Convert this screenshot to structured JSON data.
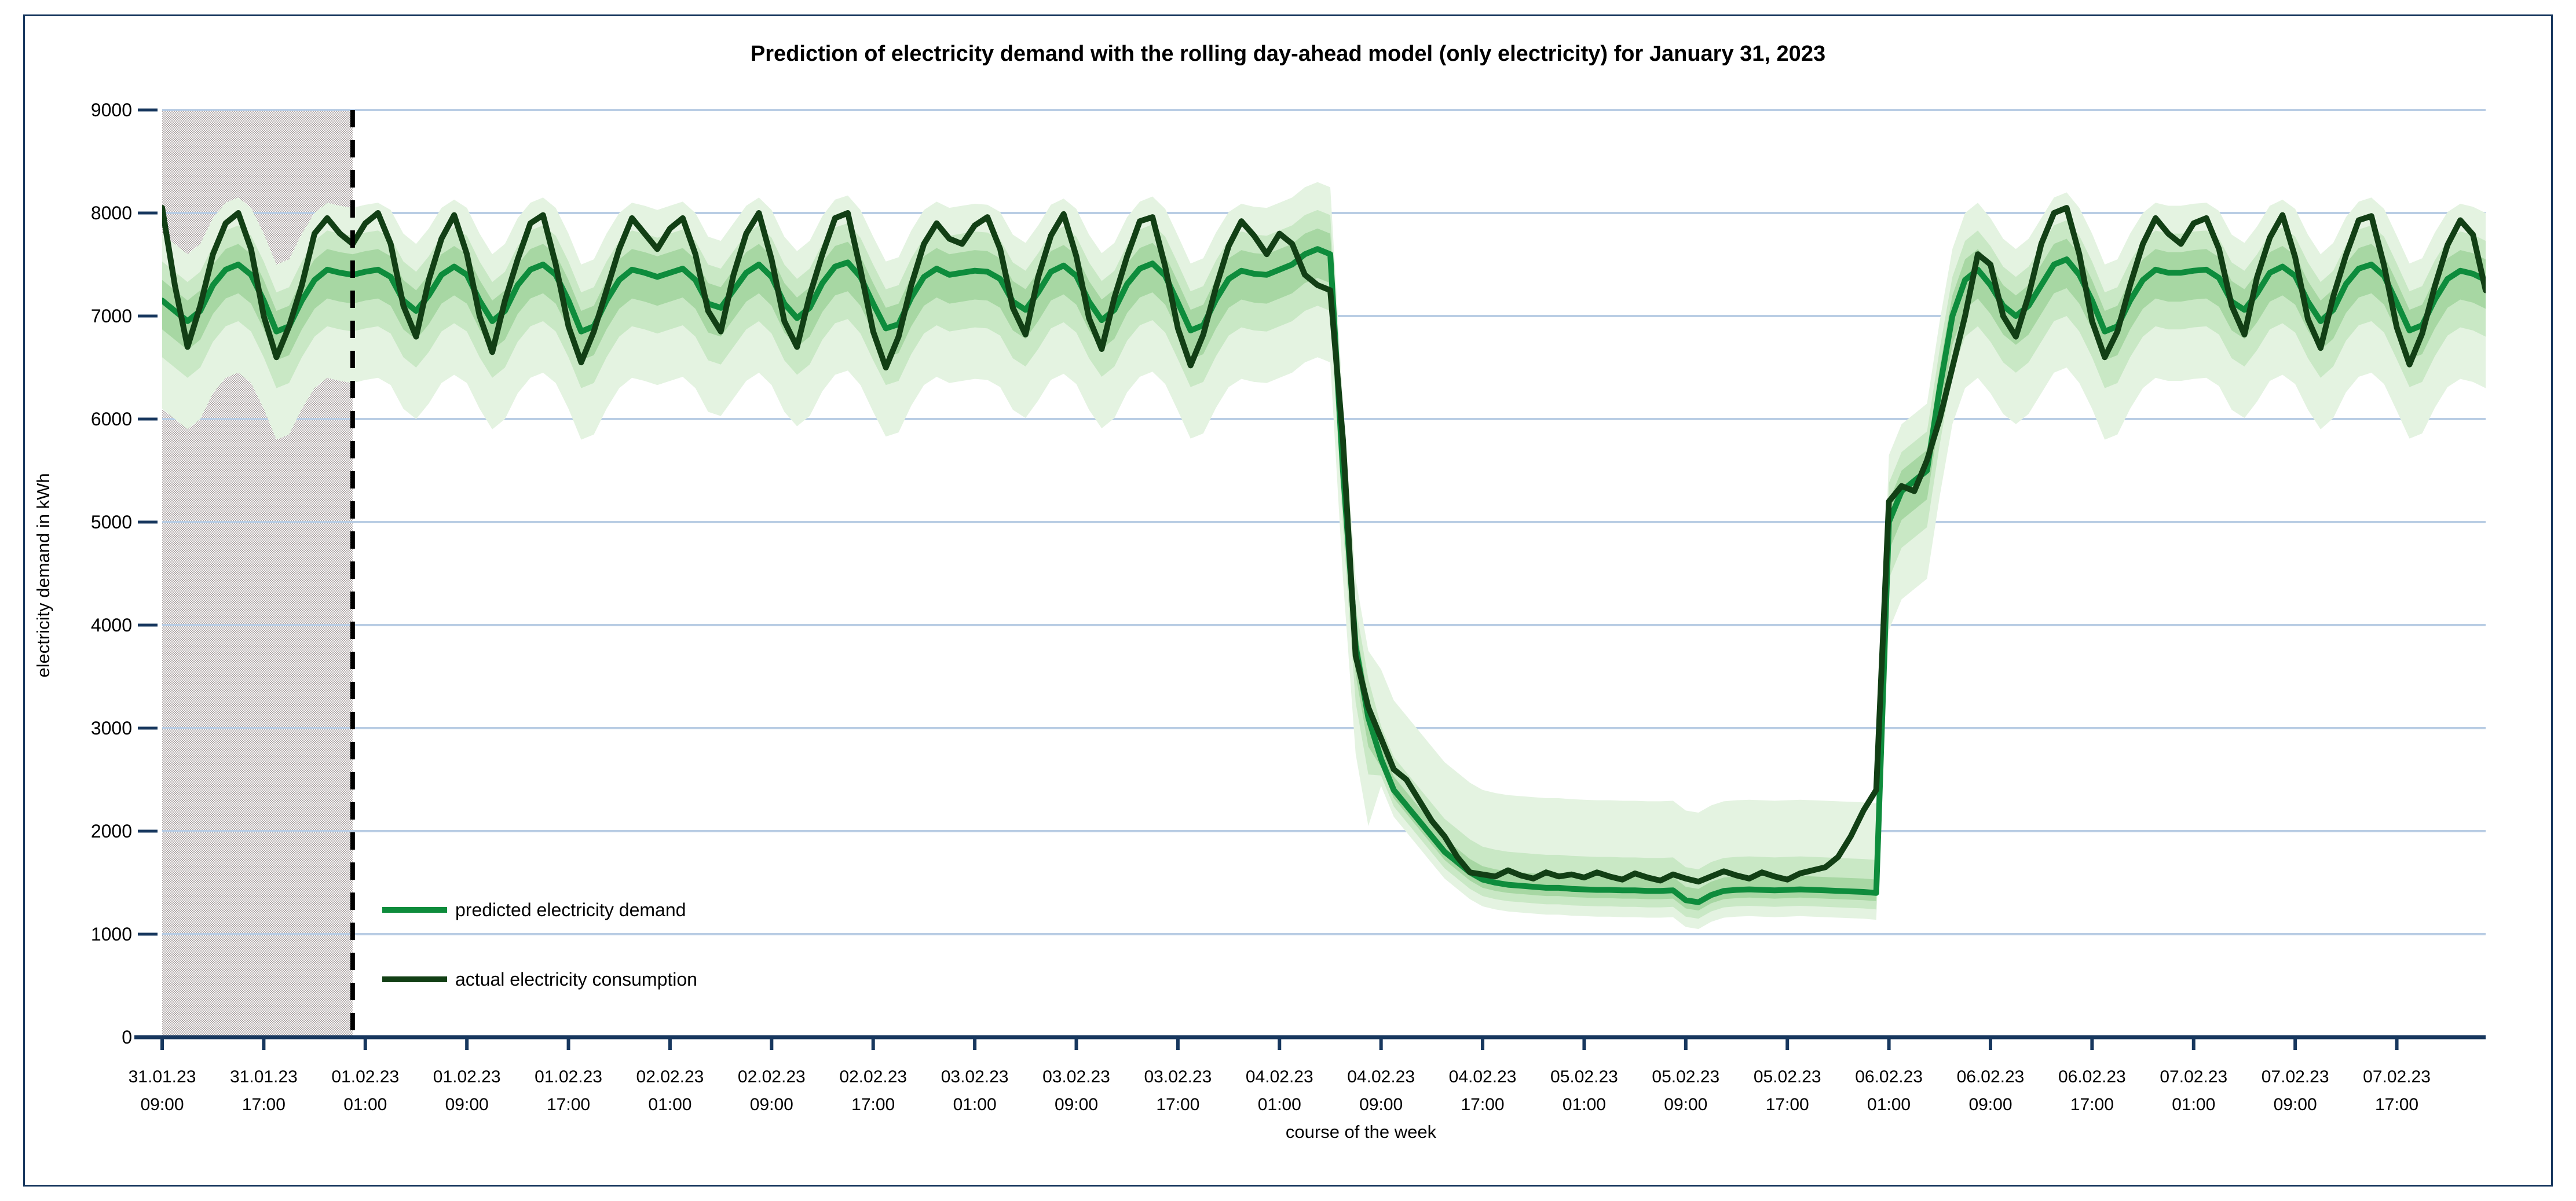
{
  "figure": {
    "title": "Prediction of electricity demand with the rolling day-ahead model (only electricity) for January 31, 2023",
    "border_color": "#17375E",
    "background": "#FFFFFF"
  },
  "legend": {
    "items": [
      {
        "label": "predicted electricity demand",
        "color": "#0E8C3C"
      },
      {
        "label": "actual electricity consumption",
        "color": "#123F15"
      }
    ]
  },
  "chart_data": {
    "type": "line",
    "title": "Prediction of electricity demand with the rolling day-ahead model (only electricity) for January 31, 2023",
    "xlabel": "course of the week",
    "ylabel": "electricity demand in kWh",
    "ylim": [
      0,
      9000
    ],
    "y_ticks": [
      0,
      1000,
      2000,
      3000,
      4000,
      5000,
      6000,
      7000,
      8000,
      9000
    ],
    "grid": "horizontal",
    "gridline_color": "#B9CDE4",
    "axis_color": "#17375E",
    "hours_total": 183,
    "x_tick_interval_hours": 8,
    "x_ticks": [
      {
        "hour": 0,
        "date": "31.01.23",
        "time": "09:00"
      },
      {
        "hour": 8,
        "date": "31.01.23",
        "time": "17:00"
      },
      {
        "hour": 16,
        "date": "01.02.23",
        "time": "01:00"
      },
      {
        "hour": 24,
        "date": "01.02.23",
        "time": "09:00"
      },
      {
        "hour": 32,
        "date": "01.02.23",
        "time": "17:00"
      },
      {
        "hour": 40,
        "date": "02.02.23",
        "time": "01:00"
      },
      {
        "hour": 48,
        "date": "02.02.23",
        "time": "09:00"
      },
      {
        "hour": 56,
        "date": "02.02.23",
        "time": "17:00"
      },
      {
        "hour": 64,
        "date": "03.02.23",
        "time": "01:00"
      },
      {
        "hour": 72,
        "date": "03.02.23",
        "time": "09:00"
      },
      {
        "hour": 80,
        "date": "03.02.23",
        "time": "17:00"
      },
      {
        "hour": 88,
        "date": "04.02.23",
        "time": "01:00"
      },
      {
        "hour": 96,
        "date": "04.02.23",
        "time": "09:00"
      },
      {
        "hour": 104,
        "date": "04.02.23",
        "time": "17:00"
      },
      {
        "hour": 112,
        "date": "05.02.23",
        "time": "01:00"
      },
      {
        "hour": 120,
        "date": "05.02.23",
        "time": "09:00"
      },
      {
        "hour": 128,
        "date": "05.02.23",
        "time": "17:00"
      },
      {
        "hour": 136,
        "date": "06.02.23",
        "time": "01:00"
      },
      {
        "hour": 144,
        "date": "06.02.23",
        "time": "09:00"
      },
      {
        "hour": 152,
        "date": "06.02.23",
        "time": "17:00"
      },
      {
        "hour": 160,
        "date": "07.02.23",
        "time": "01:00"
      },
      {
        "hour": 168,
        "date": "07.02.23",
        "time": "09:00"
      },
      {
        "hour": 176,
        "date": "07.02.23",
        "time": "17:00"
      }
    ],
    "history_region": {
      "from_hour": 0,
      "to_hour": 15,
      "style": "gray-stipple",
      "dot_color": "#B3ABAB"
    },
    "forecast_start_line": {
      "hour": 15,
      "style": "dashed",
      "color": "#000000"
    },
    "uncertainty_bands": {
      "threshold": 3000,
      "colors": {
        "outer": "#E4F3E1",
        "middle": "#C9E8C5",
        "inner": "#A7D7A3"
      },
      "high_phase": {
        "inner": [
          -280,
          200
        ],
        "middle": [
          -550,
          380
        ],
        "outer": [
          -1050,
          650
        ]
      },
      "low_phase": {
        "inner": [
          -80,
          130
        ],
        "middle": [
          -160,
          320
        ],
        "outer": [
          -260,
          870
        ]
      }
    },
    "series": [
      {
        "name": "predicted electricity demand",
        "color": "#0E8C3C",
        "values": [
          7150,
          7050,
          6950,
          7050,
          7300,
          7450,
          7500,
          7400,
          7150,
          6850,
          6900,
          7150,
          7350,
          7450,
          7420,
          7400,
          7430,
          7450,
          7380,
          7150,
          7050,
          7200,
          7400,
          7480,
          7400,
          7150,
          6950,
          7050,
          7300,
          7450,
          7500,
          7400,
          7150,
          6850,
          6900,
          7150,
          7350,
          7450,
          7420,
          7380,
          7420,
          7460,
          7350,
          7120,
          7080,
          7250,
          7420,
          7500,
          7380,
          7120,
          6980,
          7080,
          7320,
          7480,
          7520,
          7380,
          7120,
          6880,
          6920,
          7180,
          7380,
          7460,
          7400,
          7420,
          7440,
          7430,
          7360,
          7140,
          7060,
          7230,
          7430,
          7490,
          7390,
          7140,
          6960,
          7060,
          7310,
          7460,
          7510,
          7390,
          7130,
          6860,
          6910,
          7160,
          7360,
          7440,
          7410,
          7400,
          7450,
          7500,
          7600,
          7650,
          7600,
          5500,
          3800,
          3100,
          2700,
          2400,
          2250,
          2100,
          1950,
          1800,
          1700,
          1600,
          1530,
          1500,
          1480,
          1470,
          1460,
          1450,
          1450,
          1440,
          1435,
          1430,
          1430,
          1425,
          1425,
          1420,
          1420,
          1425,
          1330,
          1310,
          1380,
          1420,
          1430,
          1435,
          1430,
          1425,
          1430,
          1435,
          1430,
          1425,
          1420,
          1415,
          1410,
          1400,
          5000,
          5300,
          5400,
          5500,
          6300,
          7000,
          7350,
          7450,
          7300,
          7100,
          7000,
          7100,
          7300,
          7500,
          7550,
          7400,
          7150,
          6850,
          6900,
          7150,
          7350,
          7450,
          7420,
          7420,
          7440,
          7450,
          7370,
          7140,
          7060,
          7220,
          7420,
          7480,
          7390,
          7140,
          6950,
          7060,
          7310,
          7460,
          7500,
          7390,
          7130,
          6860,
          6910,
          7160,
          7360,
          7440,
          7410,
          7350
        ]
      },
      {
        "name": "actual electricity consumption",
        "color": "#123F15",
        "values": [
          8050,
          7300,
          6700,
          7100,
          7600,
          7900,
          8000,
          7650,
          7000,
          6600,
          6900,
          7300,
          7800,
          7950,
          7800,
          7700,
          7900,
          8000,
          7700,
          7100,
          6800,
          7350,
          7750,
          7980,
          7600,
          7000,
          6650,
          7150,
          7550,
          7900,
          7980,
          7500,
          6900,
          6550,
          6850,
          7250,
          7650,
          7950,
          7800,
          7650,
          7850,
          7950,
          7600,
          7050,
          6850,
          7400,
          7800,
          8000,
          7550,
          6950,
          6700,
          7200,
          7600,
          7950,
          8000,
          7450,
          6850,
          6500,
          6800,
          7300,
          7700,
          7900,
          7750,
          7700,
          7880,
          7960,
          7650,
          7080,
          6820,
          7380,
          7780,
          7990,
          7580,
          6980,
          6680,
          7180,
          7580,
          7920,
          7960,
          7480,
          6880,
          6520,
          6820,
          7280,
          7680,
          7920,
          7780,
          7600,
          7800,
          7700,
          7400,
          7300,
          7250,
          5800,
          3700,
          3200,
          2900,
          2600,
          2500,
          2300,
          2100,
          1950,
          1750,
          1600,
          1580,
          1560,
          1620,
          1570,
          1540,
          1600,
          1560,
          1580,
          1550,
          1600,
          1560,
          1530,
          1590,
          1550,
          1520,
          1580,
          1540,
          1510,
          1560,
          1610,
          1570,
          1540,
          1600,
          1560,
          1530,
          1590,
          1620,
          1650,
          1750,
          1950,
          2200,
          2400,
          5200,
          5350,
          5300,
          5600,
          6000,
          6500,
          7000,
          7600,
          7500,
          7000,
          6800,
          7200,
          7700,
          8000,
          8050,
          7600,
          6950,
          6600,
          6850,
          7300,
          7700,
          7950,
          7800,
          7700,
          7900,
          7950,
          7650,
          7100,
          6820,
          7380,
          7760,
          7980,
          7570,
          6970,
          6690,
          7190,
          7590,
          7930,
          7970,
          7490,
          6890,
          6530,
          6830,
          7290,
          7690,
          7930,
          7790,
          7250
        ]
      }
    ]
  }
}
